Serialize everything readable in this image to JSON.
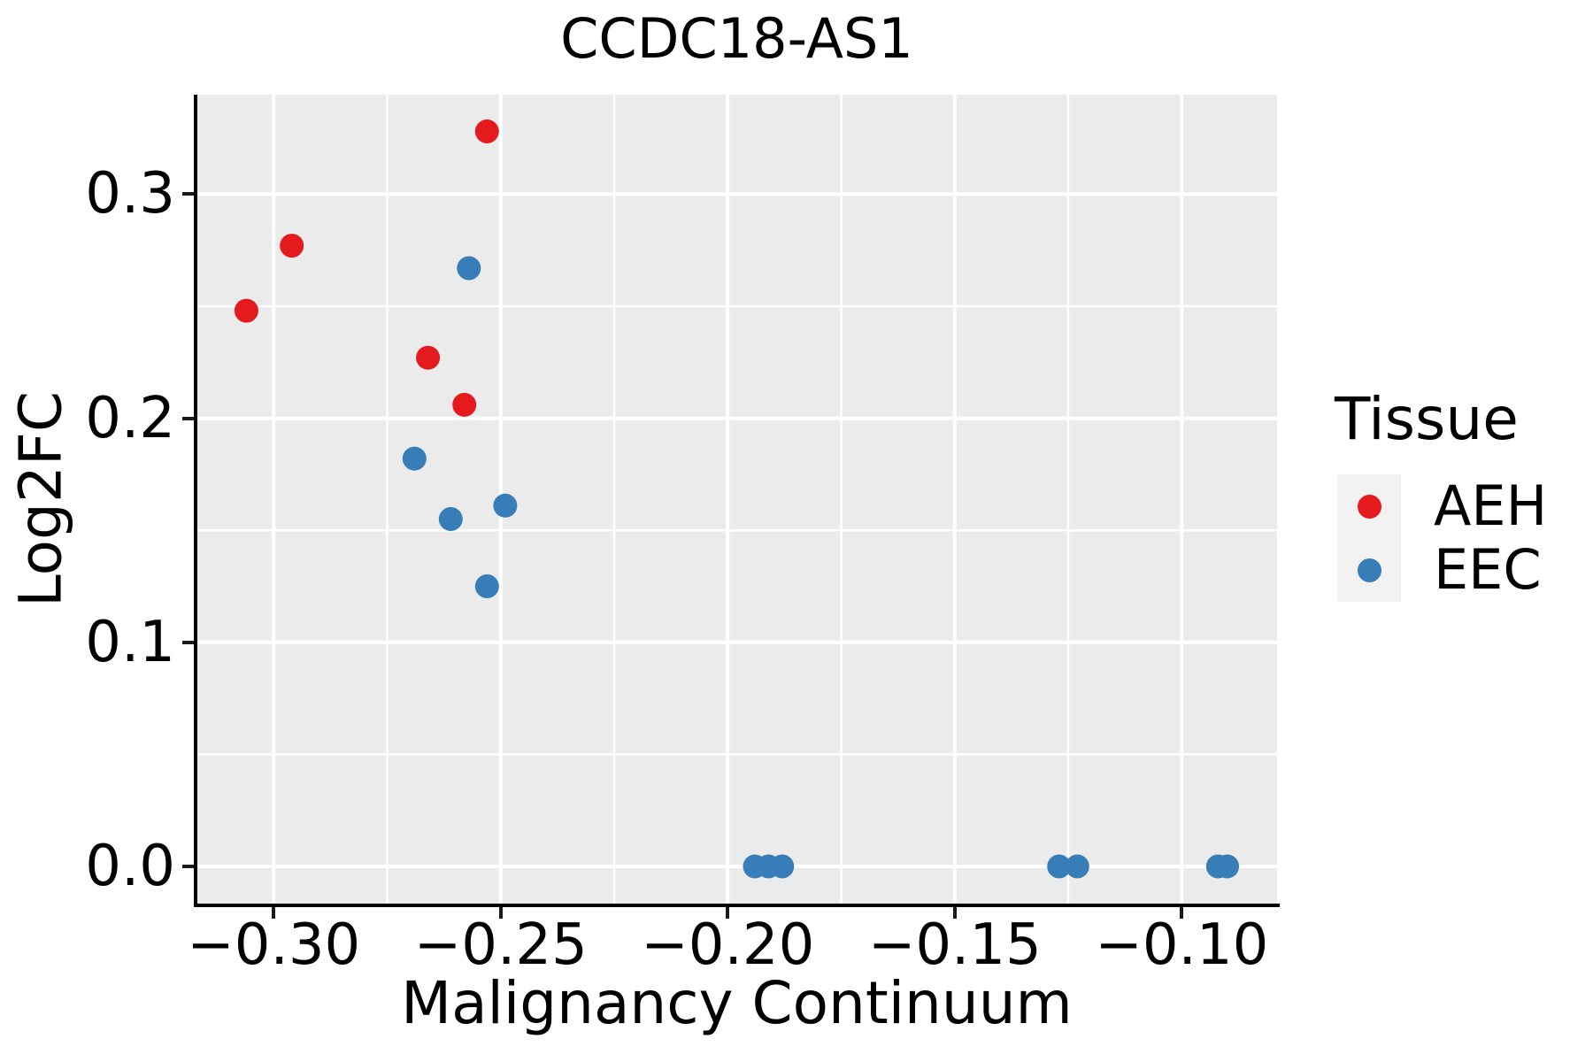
{
  "figure": {
    "background": "#ffffff",
    "panel_background": "#ebebeb",
    "grid_color": "#ffffff",
    "spine_color": "#000000",
    "text_color": "#000000",
    "legend_key_background": "#f2f2f2"
  },
  "chart_data": {
    "type": "scatter",
    "title": "CCDC18-AS1",
    "xlabel": "Malignancy Continuum",
    "ylabel": "Log2FC",
    "xlim": [
      -0.317,
      -0.079
    ],
    "ylim": [
      -0.0166,
      0.3444
    ],
    "grid": "major+minor, white on gray panel",
    "marker_radius_px": 13.5,
    "x_ticks": {
      "values": [
        -0.3,
        -0.25,
        -0.2,
        -0.15,
        -0.1
      ],
      "labels": [
        "−0.30",
        "−0.25",
        "−0.20",
        "−0.15",
        "−0.10"
      ],
      "minor": [
        -0.275,
        -0.225,
        -0.175,
        -0.125
      ]
    },
    "y_ticks": {
      "values": [
        0.0,
        0.1,
        0.2,
        0.3
      ],
      "labels": [
        "0.0",
        "0.1",
        "0.2",
        "0.3"
      ],
      "minor": [
        0.05,
        0.15,
        0.25
      ]
    },
    "legend": {
      "title": "Tissue",
      "position": "right",
      "entries": [
        {
          "label": "AEH",
          "color": "#e41a1c"
        },
        {
          "label": "EEC",
          "color": "#377eb8"
        }
      ]
    },
    "series": [
      {
        "name": "AEH",
        "color": "#e41a1c",
        "points": [
          [
            -0.306,
            0.248
          ],
          [
            -0.296,
            0.277
          ],
          [
            -0.266,
            0.227
          ],
          [
            -0.258,
            0.206
          ],
          [
            -0.253,
            0.328
          ]
        ]
      },
      {
        "name": "EEC",
        "color": "#377eb8",
        "points": [
          [
            -0.269,
            0.182
          ],
          [
            -0.261,
            0.155
          ],
          [
            -0.257,
            0.267
          ],
          [
            -0.249,
            0.161
          ],
          [
            -0.253,
            0.125
          ],
          [
            -0.194,
            0.0
          ],
          [
            -0.191,
            0.0
          ],
          [
            -0.188,
            0.0
          ],
          [
            -0.127,
            0.0
          ],
          [
            -0.123,
            0.0
          ],
          [
            -0.092,
            0.0
          ],
          [
            -0.09,
            0.0
          ]
        ]
      }
    ]
  }
}
